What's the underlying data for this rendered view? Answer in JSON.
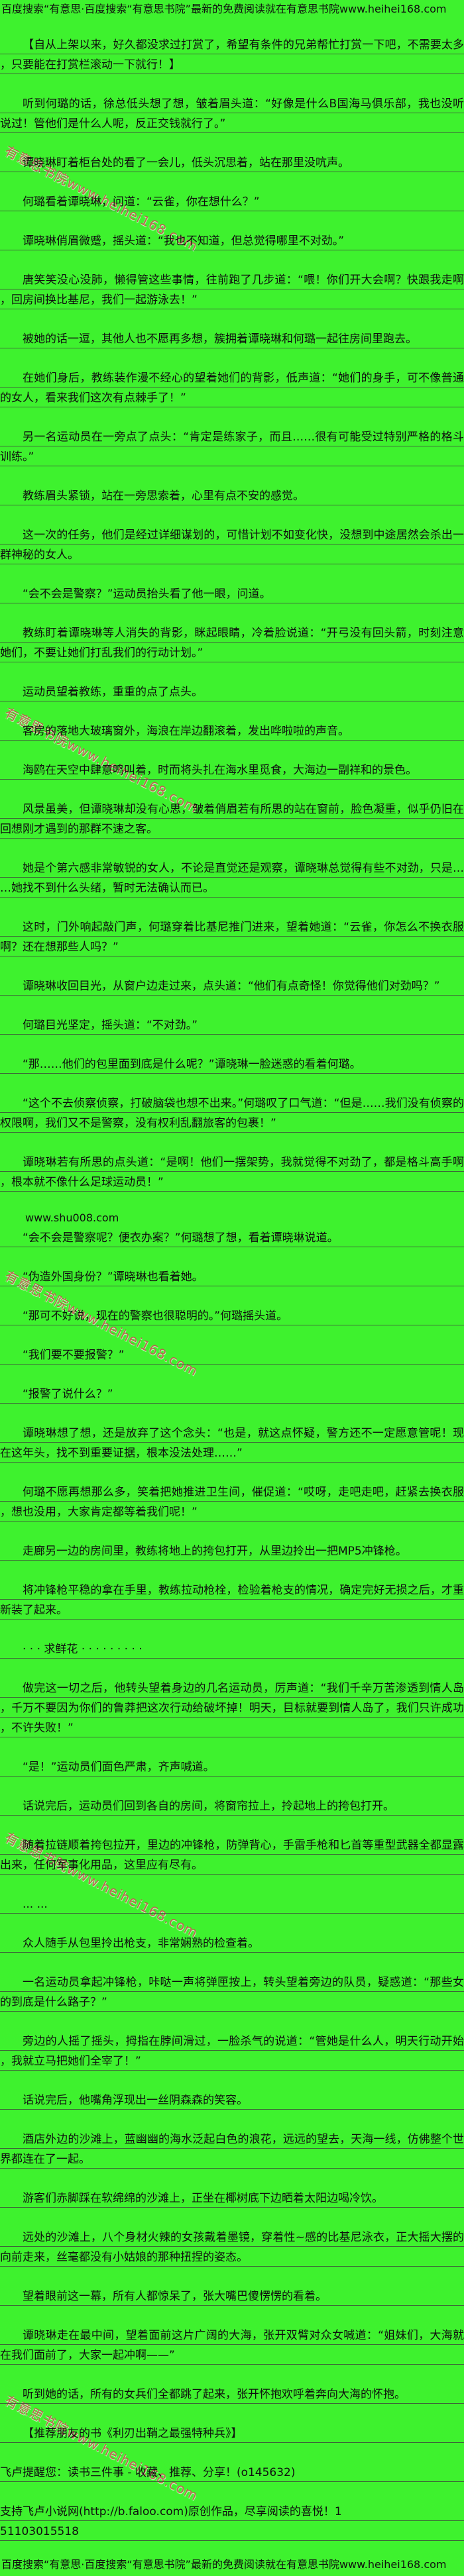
{
  "page": {
    "header": "百度搜索“有意思·百度搜索“有意思书院”最新的免费阅读就在有意思书院www.heihei168.com",
    "footer": "百度搜索“有意思·百度搜索“有意思书院”最新的免费阅读就在有意思书院www.heihei168.com",
    "watermark": "有意思书院www.heihei168.com",
    "colors": {
      "background": "#3EF22E",
      "text": "#0F0F0F",
      "rule_line": "#3E4A3C",
      "watermark": "#C44D48"
    }
  },
  "paragraphs": [
    {
      "t": "【自从上架以来，好久都没求过打赏了，希望有条件的兄弟帮忙打赏一下吧，不需要太多，只要能在打赏栏滚动一下就行！】",
      "s": "body"
    },
    {
      "t": "听到何璐的话，徐总低头想了想，皱着眉头道：“好像是什么B国海马俱乐部，我也没听说过！管他们是什么人呢，反正交钱就行了。”",
      "s": "body"
    },
    {
      "t": "谭晓琳盯着柜台处的看了一会儿，低头沉思着，站在那里没吭声。",
      "s": "body"
    },
    {
      "t": "何璐看着谭晓琳，问道：“云雀，你在想什么？”",
      "s": "body"
    },
    {
      "t": "谭晓琳俏眉微蹙，摇头道：“我也不知道，但总觉得哪里不对劲。”",
      "s": "body"
    },
    {
      "t": "唐笑笑没心没肺，懒得管这些事情，往前跑了几步道：“喂！你们开大会啊？快跟我走啊，回房间换比基尼，我们一起游泳去！”",
      "s": "body"
    },
    {
      "t": "被她的话一逗，其他人也不愿再多想，簇拥着谭晓琳和何璐一起往房间里跑去。",
      "s": "body"
    },
    {
      "t": "在她们身后，教练装作漫不经心的望着她们的背影，低声道：“她们的身手，可不像普通的女人，看来我们这次有点棘手了！”",
      "s": "body"
    },
    {
      "t": "另一名运动员在一旁点了点头：“肯定是练家子，而且……很有可能受过特别严格的格斗训练。”",
      "s": "body"
    },
    {
      "t": "教练眉头紧锁，站在一旁思索着，心里有点不安的感觉。",
      "s": "body"
    },
    {
      "t": "这一次的任务，他们是经过详细谋划的，可惜计划不如变化快，没想到中途居然会杀出一群神秘的女人。",
      "s": "body"
    },
    {
      "t": "“会不会是警察？”运动员抬头看了他一眼，问道。",
      "s": "body"
    },
    {
      "t": "教练盯着谭晓琳等人消失的背影，眯起眼睛，冷着脸说道：“开弓没有回头箭，时刻注意她们，不要让她们打乱我们的行动计划。”",
      "s": "body"
    },
    {
      "t": "运动员望着教练，重重的点了点头。",
      "s": "body"
    },
    {
      "t": "客房的落地大玻璃窗外，海浪在岸边翻滚着，发出哗啦啦的声音。",
      "s": "body"
    },
    {
      "t": "海鸥在天空中肆意鸣叫着，时而将头扎在海水里觅食，大海边一副祥和的景色。",
      "s": "body"
    },
    {
      "t": "风景虽美，但谭晓琳却没有心思，皱着俏眉若有所思的站在窗前，脸色凝重，似乎仍旧在回想刚才遇到的那群不速之客。",
      "s": "body"
    },
    {
      "t": "她是个第六感非常敏锐的女人，不论是直觉还是观察，谭晓琳总觉得有些不对劲，只是……她找不到什么头绪，暂时无法确认而已。",
      "s": "body"
    },
    {
      "t": "这时，门外响起敲门声，何璐穿着比基尼推门进来，望着她道：“云雀，你怎么不换衣服啊？还在想那些人吗？”",
      "s": "body"
    },
    {
      "t": "谭晓琳收回目光，从窗户边走过来，点头道：“他们有点奇怪！你觉得他们对劲吗？”",
      "s": "body"
    },
    {
      "t": "何璐目光坚定，摇头道：“不对劲。”",
      "s": "body"
    },
    {
      "t": "“那……他们的包里面到底是什么呢？”谭晓琳一脸迷惑的看着何璐。",
      "s": "body"
    },
    {
      "t": "“这个不去侦察侦察，打破脑袋也想不出来。”何璐叹了口气道：“但是……我们没有侦察的权限啊，我们又不是警察，没有权利乱翻旅客的包裹！”",
      "s": "body"
    },
    {
      "t": "谭晓琳若有所思的点头道：“是啊！他们一摆架势，我就觉得不对劲了，都是格斗高手啊，根本就不像什么足球运动员！”",
      "s": "body"
    },
    {
      "t": "www.shu008.com",
      "s": "ad",
      "n": "shu008-ad-line"
    },
    {
      "t": "“会不会是警察呢？便衣办案？”何璐想了想，看着谭晓琳说道。",
      "s": "body"
    },
    {
      "t": "“伪造外国身份？”谭晓琳也看着她。",
      "s": "body"
    },
    {
      "t": "“那可不好说，现在的警察也很聪明的。”何璐摇头道。",
      "s": "body"
    },
    {
      "t": "“我们要不要报警？”",
      "s": "body"
    },
    {
      "t": "“报警了说什么？”",
      "s": "body"
    },
    {
      "t": "谭晓琳想了想，还是放弃了这个念头：“也是，就这点怀疑，警方还不一定愿意管呢！现在这年头，找不到重要证据，根本没法处理……”",
      "s": "body"
    },
    {
      "t": "何璐不愿再想那么多，笑着把她推进卫生间，催促道：“哎呀，走吧走吧，赶紧去换衣服，想也没用，大家肯定都等着我们呢！”",
      "s": "body"
    },
    {
      "t": "走廊另一边的房间里，教练将地上的挎包打开，从里边拎出一把MP5冲锋枪。",
      "s": "body"
    },
    {
      "t": "将冲锋枪平稳的拿在手里，教练拉动枪栓，检验着枪支的情况，确定完好无损之后，才重新装了起来。",
      "s": "body"
    },
    {
      "t": "· · · 求鲜花 · · · · · · · · ·",
      "s": "body",
      "n": "ask-flowers-line"
    },
    {
      "t": "做完这一切之后，他转头望着身边的几名运动员，厉声道：“我们千辛万苦渗透到情人岛，千万不要因为你们的鲁莽把这次行动给破坏掉！明天，目标就要到情人岛了，我们只许成功，不许失败！”",
      "s": "body"
    },
    {
      "t": "“是！”运动员们面色严肃，齐声喊道。",
      "s": "body"
    },
    {
      "t": "话说完后，运动员们回到各自的房间，将窗帘拉上，拎起地上的挎包打开。",
      "s": "body"
    },
    {
      "t": "随着拉链顺着挎包拉开，里边的冲锋枪，防弹背心，手雷手枪和匕首等重型武器全都显露出来，任何军事化用品，这里应有尽有。",
      "s": "body"
    },
    {
      "t": "... ...",
      "s": "body",
      "n": "ellipsis-line"
    },
    {
      "t": "众人随手从包里拎出枪支，非常娴熟的检查着。",
      "s": "body"
    },
    {
      "t": "一名运动员拿起冲锋枪，咔哒一声将弹匣按上，转头望着旁边的队员，疑惑道：“那些女的到底是什么路子？”",
      "s": "body"
    },
    {
      "t": "旁边的人摇了摇头，拇指在脖间滑过，一脸杀气的说道：“管她是什么人，明天行动开始，我就立马把她们全宰了！”",
      "s": "body"
    },
    {
      "t": "话说完后，他嘴角浮现出一丝阴森森的笑容。",
      "s": "body"
    },
    {
      "t": "酒店外边的沙滩上，蓝幽幽的海水泛起白色的浪花，远远的望去，天海一线，仿佛整个世界都连在了一起。",
      "s": "body"
    },
    {
      "t": "游客们赤脚踩在软绵绵的沙滩上，正坐在椰树底下边晒着太阳边喝冷饮。",
      "s": "body"
    },
    {
      "t": "远处的沙滩上，八个身材火辣的女孩戴着墨镜，穿着性~感的比基尼泳衣，正大摇大摆的向前走来，丝毫都没有小姑娘的那种扭捏的姿态。",
      "s": "body"
    },
    {
      "t": "望着眼前这一幕，所有人都惊呆了，张大嘴巴傻愣愣的看着。",
      "s": "body"
    },
    {
      "t": "谭晓琳走在最中间，望着面前这片广阔的大海，张开双臂对众女喊道：“姐妹们，大海就在我们面前了，大家一起冲啊——”",
      "s": "body"
    },
    {
      "t": "听到她的话，所有的女兵们全都跳了起来，张开怀抱欢呼着奔向大海的怀抱。",
      "s": "body"
    },
    {
      "t": "【推荐朋友的书《利刃出鞘之最强特种兵》】",
      "s": "body",
      "n": "book-recommendation-line"
    },
    {
      "t": "飞卢提醒您：读书三件事 - 收藏、推荐、分享！(o145632)",
      "s": "plain",
      "n": "faloo-reminder-line"
    },
    {
      "t": "支持飞卢小说网(http://b.faloo.com)原创作品，尽享阅读的喜悦！1",
      "s": "plain",
      "n": "faloo-support-line"
    },
    {
      "t": "51103015518",
      "s": "tight",
      "n": "faloo-id-line"
    }
  ]
}
